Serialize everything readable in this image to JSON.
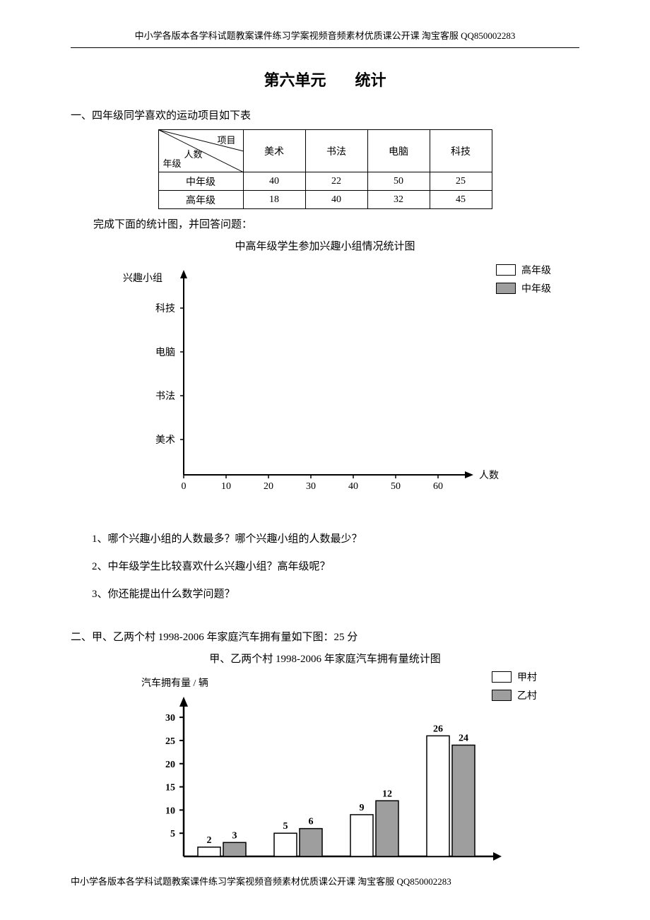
{
  "header": "中小学各版本各学科试题教案课件练习学案视频音频素材优质课公开课  淘宝客服 QQ850002283",
  "footer": "中小学各版本各学科试题教案课件练习学案视频音频素材优质课公开课  淘宝客服 QQ850002283",
  "title_prefix": "第六单元",
  "title_suffix": "统计",
  "section1": {
    "heading": "一、四年级同学喜欢的运动项目如下表",
    "table": {
      "diag_top": "项目",
      "diag_mid": "人数",
      "diag_bottom": "年级",
      "columns": [
        "美术",
        "书法",
        "电脑",
        "科技"
      ],
      "rows": [
        {
          "label": "中年级",
          "values": [
            "40",
            "22",
            "50",
            "25"
          ]
        },
        {
          "label": "高年级",
          "values": [
            "18",
            "40",
            "32",
            "45"
          ]
        }
      ]
    },
    "instruction": "完成下面的统计图，并回答问题：",
    "chart_title": "中高年级学生参加兴趣小组情况统计图",
    "chart1": {
      "type": "horizontal-bar-empty",
      "y_axis_label": "兴趣小组",
      "x_axis_label": "人数",
      "y_categories": [
        "科技",
        "电脑",
        "书法",
        "美术"
      ],
      "x_ticks": [
        "0",
        "10",
        "20",
        "30",
        "40",
        "50",
        "60"
      ],
      "legend": [
        {
          "label": "高年级",
          "fill": "#ffffff"
        },
        {
          "label": "中年级",
          "fill": "#9e9e9e"
        }
      ],
      "axis_color": "#000000",
      "background_color": "#ffffff"
    },
    "questions": [
      "1、哪个兴趣小组的人数最多？哪个兴趣小组的人数最少？",
      "2、中年级学生比较喜欢什么兴趣小组？高年级呢？",
      "3、你还能提出什么数学问题？"
    ]
  },
  "section2": {
    "heading": "二、甲、乙两个村 1998-2006 年家庭汽车拥有量如下图：25 分",
    "chart_title": "甲、乙两个村 1998-2006 年家庭汽车拥有量统计图",
    "chart2": {
      "type": "bar",
      "y_axis_label": "汽车拥有量 / 辆",
      "y_ticks": [
        5,
        10,
        15,
        20,
        25,
        30
      ],
      "ylim": [
        0,
        32
      ],
      "legend": [
        {
          "label": "甲村",
          "fill": "#ffffff"
        },
        {
          "label": "乙村",
          "fill": "#9e9e9e"
        }
      ],
      "groups": [
        {
          "a": 2,
          "b": 3
        },
        {
          "a": 5,
          "b": 6
        },
        {
          "a": 9,
          "b": 12
        },
        {
          "a": 26,
          "b": 24
        }
      ],
      "bar_border": "#000000",
      "axis_color": "#000000",
      "background_color": "#ffffff"
    }
  }
}
